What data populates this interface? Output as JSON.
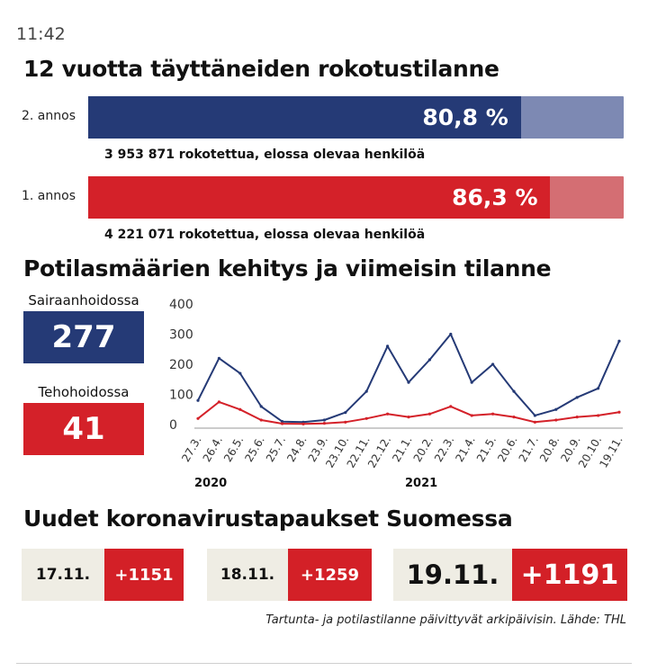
{
  "status": {
    "time": "11:42"
  },
  "vaccination": {
    "title": "12 vuotta täyttäneiden rokotustilanne",
    "doses": [
      {
        "label": "2. annos",
        "percent": 80.8,
        "percent_label": "80,8 %",
        "note": "3 953 871 rokotettua, elossa olevaa henkilöä",
        "fill_color": "#253a76",
        "track_color": "#7d89b3"
      },
      {
        "label": "1. annos",
        "percent": 86.3,
        "percent_label": "86,3 %",
        "note": "4 221 071 rokotettua, elossa olevaa henkilöä",
        "fill_color": "#d42129",
        "track_color": "#d46e73"
      }
    ]
  },
  "patients": {
    "title": "Potilasmäärien kehitys ja viimeisin tilanne",
    "hospital": {
      "label": "Sairaanhoidossa",
      "value": "277",
      "color": "#253a76"
    },
    "icu": {
      "label": "Tehohoidossa",
      "value": "41",
      "color": "#d42129"
    }
  },
  "chart_data": {
    "type": "line",
    "x": [
      "27.3.",
      "26.4.",
      "26.5.",
      "25.6.",
      "25.7.",
      "24.8.",
      "23.9.",
      "23.10.",
      "22.11.",
      "22.12.",
      "21.1.",
      "20.2.",
      "22.3.",
      "21.4.",
      "21.5.",
      "20.6.",
      "21.7.",
      "20.8.",
      "20.9.",
      "20.10.",
      "19.11."
    ],
    "year_labels": [
      "2020",
      "2021"
    ],
    "ylim": [
      0,
      400
    ],
    "yticks": [
      0,
      100,
      200,
      300,
      400
    ],
    "series": [
      {
        "color": "#253a76",
        "values": [
          80,
          220,
          170,
          60,
          10,
          8,
          15,
          40,
          110,
          260,
          140,
          215,
          300,
          140,
          200,
          110,
          30,
          50,
          90,
          120,
          277
        ]
      },
      {
        "color": "#d42129",
        "values": [
          20,
          75,
          50,
          15,
          3,
          2,
          4,
          8,
          20,
          35,
          25,
          35,
          60,
          30,
          35,
          25,
          8,
          15,
          25,
          30,
          41
        ]
      }
    ]
  },
  "cases": {
    "title": "Uudet koronavirustapaukset Suomessa",
    "items": [
      {
        "date": "17.11.",
        "value": "+1151"
      },
      {
        "date": "18.11.",
        "value": "+1259"
      },
      {
        "date": "19.11.",
        "value": "+1191"
      }
    ],
    "source": "Tartunta- ja potilastilanne päivittyvät arkipäivisin. Lähde: THL"
  }
}
